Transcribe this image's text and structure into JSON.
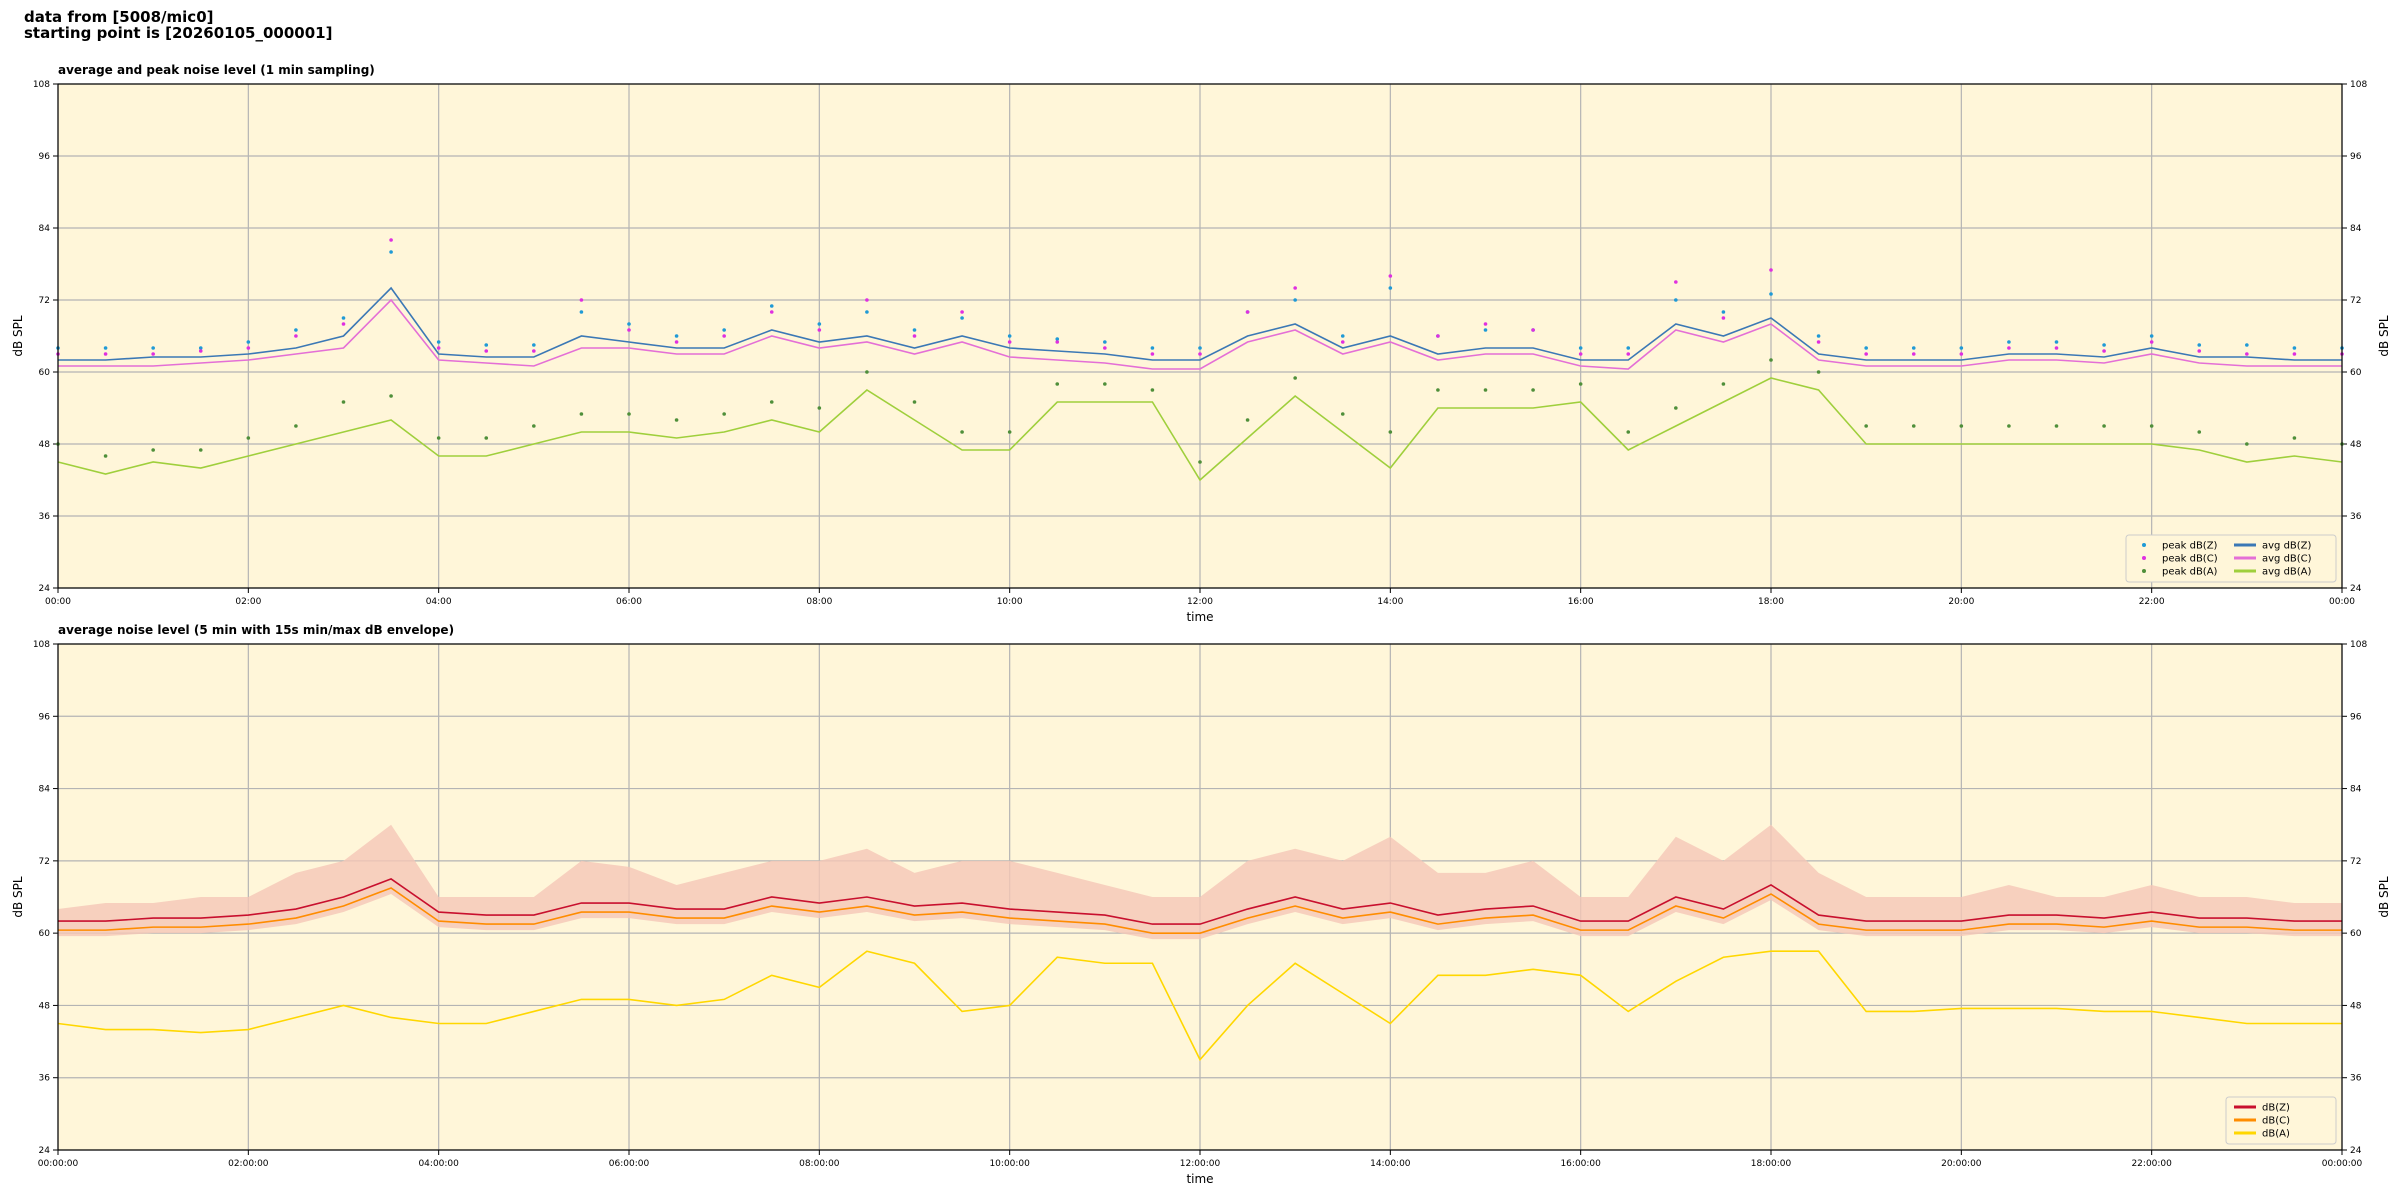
{
  "header": {
    "lines": [
      "data from [5008/mic0]",
      "starting point is [20260105_000001]"
    ]
  },
  "chart_data": [
    {
      "type": "line",
      "title": "average and peak noise level (1 min sampling)",
      "xlabel": "time",
      "ylabel": "dB SPL",
      "x": [
        0,
        0.5,
        1,
        1.5,
        2,
        2.5,
        3,
        3.5,
        4,
        4.5,
        5,
        5.5,
        6,
        6.5,
        7,
        7.5,
        8,
        8.5,
        9,
        9.5,
        10,
        10.5,
        11,
        11.5,
        12,
        12.5,
        13,
        13.5,
        14,
        14.5,
        15,
        15.5,
        16,
        16.5,
        17,
        17.5,
        18,
        18.5,
        19,
        19.5,
        20,
        20.5,
        21,
        21.5,
        22,
        22.5,
        23,
        23.5,
        24
      ],
      "xlim": [
        0,
        24
      ],
      "xticks": [
        {
          "value": 0,
          "label": "00:00"
        },
        {
          "value": 2,
          "label": "02:00"
        },
        {
          "value": 4,
          "label": "04:00"
        },
        {
          "value": 6,
          "label": "06:00"
        },
        {
          "value": 8,
          "label": "08:00"
        },
        {
          "value": 10,
          "label": "10:00"
        },
        {
          "value": 12,
          "label": "12:00"
        },
        {
          "value": 14,
          "label": "14:00"
        },
        {
          "value": 16,
          "label": "16:00"
        },
        {
          "value": 18,
          "label": "18:00"
        },
        {
          "value": 20,
          "label": "20:00"
        },
        {
          "value": 22,
          "label": "22:00"
        },
        {
          "value": 24,
          "label": "00:00"
        }
      ],
      "ylim": [
        24,
        108
      ],
      "yticks": [
        24,
        36,
        48,
        60,
        72,
        84,
        96,
        108
      ],
      "grid": true,
      "legend": "lower right",
      "legend_columns": 2,
      "background": "#fff6d9",
      "series": [
        {
          "name": "peak dB(Z)",
          "style": "points",
          "color": "#1f9ad6",
          "values": [
            64,
            64,
            64,
            64,
            65,
            67,
            69,
            80,
            65,
            64.5,
            64.5,
            70,
            68,
            66,
            67,
            71,
            68,
            70,
            67,
            69,
            66,
            65.5,
            65,
            64,
            64,
            70,
            72,
            66,
            74,
            66,
            67,
            67,
            64,
            64,
            72,
            70,
            73,
            66,
            64,
            64,
            64,
            65,
            65,
            64.5,
            66,
            64.5,
            64.5,
            64,
            64
          ]
        },
        {
          "name": "peak dB(C)",
          "style": "points",
          "color": "#e02fe0",
          "values": [
            63,
            63,
            63,
            63.5,
            64,
            66,
            68,
            82,
            64,
            63.5,
            63.5,
            72,
            67,
            65,
            66,
            70,
            67,
            72,
            66,
            70,
            65,
            65,
            64,
            63,
            63,
            70,
            74,
            65,
            76,
            66,
            68,
            67,
            63,
            63,
            75,
            69,
            77,
            65,
            63,
            63,
            63,
            64,
            64,
            63.5,
            65,
            63.5,
            63,
            63,
            63
          ]
        },
        {
          "name": "peak dB(A)",
          "style": "points",
          "color": "#4f8f3a",
          "values": [
            48,
            46,
            47,
            47,
            49,
            51,
            55,
            56,
            49,
            49,
            51,
            53,
            53,
            52,
            53,
            55,
            54,
            60,
            55,
            50,
            50,
            58,
            58,
            57,
            45,
            52,
            59,
            53,
            50,
            57,
            57,
            57,
            58,
            50,
            54,
            58,
            62,
            60,
            51,
            51,
            51,
            51,
            51,
            51,
            51,
            50,
            48,
            49,
            48
          ]
        },
        {
          "name": "avg dB(Z)",
          "style": "line",
          "color": "#3b78b5",
          "values": [
            62,
            62,
            62.5,
            62.5,
            63,
            64,
            66,
            74,
            63,
            62.5,
            62.5,
            66,
            65,
            64,
            64,
            67,
            65,
            66,
            64,
            66,
            64,
            63.5,
            63,
            62,
            62,
            66,
            68,
            64,
            66,
            63,
            64,
            64,
            62,
            62,
            68,
            66,
            69,
            63,
            62,
            62,
            62,
            63,
            63,
            62.5,
            64,
            62.5,
            62.5,
            62,
            62
          ]
        },
        {
          "name": "avg dB(C)",
          "style": "line",
          "color": "#e46fd6",
          "values": [
            61,
            61,
            61,
            61.5,
            62,
            63,
            64,
            72,
            62,
            61.5,
            61,
            64,
            64,
            63,
            63,
            66,
            64,
            65,
            63,
            65,
            62.5,
            62,
            61.5,
            60.5,
            60.5,
            65,
            67,
            63,
            65,
            62,
            63,
            63,
            61,
            60.5,
            67,
            65,
            68,
            62,
            61,
            61,
            61,
            62,
            62,
            61.5,
            63,
            61.5,
            61,
            61,
            61
          ]
        },
        {
          "name": "avg dB(A)",
          "style": "line",
          "color": "#9fcf3c",
          "values": [
            45,
            43,
            45,
            44,
            46,
            48,
            50,
            52,
            46,
            46,
            48,
            50,
            50,
            49,
            50,
            52,
            50,
            57,
            52,
            47,
            47,
            55,
            55,
            55,
            42,
            49,
            56,
            50,
            44,
            54,
            54,
            54,
            55,
            47,
            51,
            55,
            59,
            57,
            48,
            48,
            48,
            48,
            48,
            48,
            48,
            47,
            45,
            46,
            45
          ]
        }
      ]
    },
    {
      "type": "line",
      "title": "average noise level (5 min with 15s min/max dB envelope)",
      "xlabel": "time",
      "ylabel": "dB SPL",
      "x": [
        0,
        0.5,
        1,
        1.5,
        2,
        2.5,
        3,
        3.5,
        4,
        4.5,
        5,
        5.5,
        6,
        6.5,
        7,
        7.5,
        8,
        8.5,
        9,
        9.5,
        10,
        10.5,
        11,
        11.5,
        12,
        12.5,
        13,
        13.5,
        14,
        14.5,
        15,
        15.5,
        16,
        16.5,
        17,
        17.5,
        18,
        18.5,
        19,
        19.5,
        20,
        20.5,
        21,
        21.5,
        22,
        22.5,
        23,
        23.5,
        24
      ],
      "xlim": [
        0,
        24
      ],
      "xticks": [
        {
          "value": 0,
          "label": "00:00:00"
        },
        {
          "value": 2,
          "label": "02:00:00"
        },
        {
          "value": 4,
          "label": "04:00:00"
        },
        {
          "value": 6,
          "label": "06:00:00"
        },
        {
          "value": 8,
          "label": "08:00:00"
        },
        {
          "value": 10,
          "label": "10:00:00"
        },
        {
          "value": 12,
          "label": "12:00:00"
        },
        {
          "value": 14,
          "label": "14:00:00"
        },
        {
          "value": 16,
          "label": "16:00:00"
        },
        {
          "value": 18,
          "label": "18:00:00"
        },
        {
          "value": 20,
          "label": "20:00:00"
        },
        {
          "value": 22,
          "label": "22:00:00"
        },
        {
          "value": 24,
          "label": "00:00:00"
        }
      ],
      "ylim": [
        24,
        108
      ],
      "yticks": [
        24,
        36,
        48,
        60,
        72,
        84,
        96,
        108
      ],
      "grid": true,
      "legend": "lower right",
      "legend_columns": 1,
      "background": "#fff6d9",
      "envelope": {
        "color": "#f5c7b6",
        "max": [
          64,
          65,
          65,
          66,
          66,
          70,
          72,
          78,
          66,
          66,
          66,
          72,
          71,
          68,
          70,
          72,
          72,
          74,
          70,
          72,
          72,
          70,
          68,
          66,
          66,
          72,
          74,
          72,
          76,
          70,
          70,
          72,
          66,
          66,
          76,
          72,
          78,
          70,
          66,
          66,
          66,
          68,
          66,
          66,
          68,
          66,
          66,
          65,
          65
        ],
        "min": [
          59.5,
          59.5,
          60,
          60,
          60.5,
          61.5,
          63.5,
          66.5,
          61,
          60.5,
          60.5,
          62.5,
          62.5,
          61.5,
          61.5,
          63.5,
          62.5,
          63.5,
          62,
          62.5,
          61.5,
          61,
          60.5,
          59,
          59,
          61.5,
          63.5,
          61.5,
          62.5,
          60.5,
          61.5,
          62,
          59.5,
          59.5,
          63.5,
          61.5,
          65.5,
          60.5,
          59.5,
          59.5,
          59.5,
          60.5,
          60.5,
          60,
          61,
          60,
          60,
          59.5,
          59.5
        ]
      },
      "series": [
        {
          "name": "dB(Z)",
          "style": "line",
          "color": "#c8102e",
          "values": [
            62,
            62,
            62.5,
            62.5,
            63,
            64,
            66,
            69,
            63.5,
            63,
            63,
            65,
            65,
            64,
            64,
            66,
            65,
            66,
            64.5,
            65,
            64,
            63.5,
            63,
            61.5,
            61.5,
            64,
            66,
            64,
            65,
            63,
            64,
            64.5,
            62,
            62,
            66,
            64,
            68,
            63,
            62,
            62,
            62,
            63,
            63,
            62.5,
            63.5,
            62.5,
            62.5,
            62,
            62
          ]
        },
        {
          "name": "dB(C)",
          "style": "line",
          "color": "#ff8c00",
          "values": [
            60.5,
            60.5,
            61,
            61,
            61.5,
            62.5,
            64.5,
            67.5,
            62,
            61.5,
            61.5,
            63.5,
            63.5,
            62.5,
            62.5,
            64.5,
            63.5,
            64.5,
            63,
            63.5,
            62.5,
            62,
            61.5,
            60,
            60,
            62.5,
            64.5,
            62.5,
            63.5,
            61.5,
            62.5,
            63,
            60.5,
            60.5,
            64.5,
            62.5,
            66.5,
            61.5,
            60.5,
            60.5,
            60.5,
            61.5,
            61.5,
            61,
            62,
            61,
            61,
            60.5,
            60.5
          ]
        },
        {
          "name": "dB(A)",
          "style": "line",
          "color": "#ffd700",
          "values": [
            45,
            44,
            44,
            43.5,
            44,
            46,
            48,
            46,
            45,
            45,
            47,
            49,
            49,
            48,
            49,
            53,
            51,
            57,
            55,
            47,
            48,
            56,
            55,
            55,
            39,
            48,
            55,
            50,
            45,
            53,
            53,
            54,
            53,
            47,
            52,
            56,
            57,
            57,
            47,
            47,
            47.5,
            47.5,
            47.5,
            47,
            47,
            46,
            45,
            45,
            45
          ]
        }
      ]
    }
  ]
}
